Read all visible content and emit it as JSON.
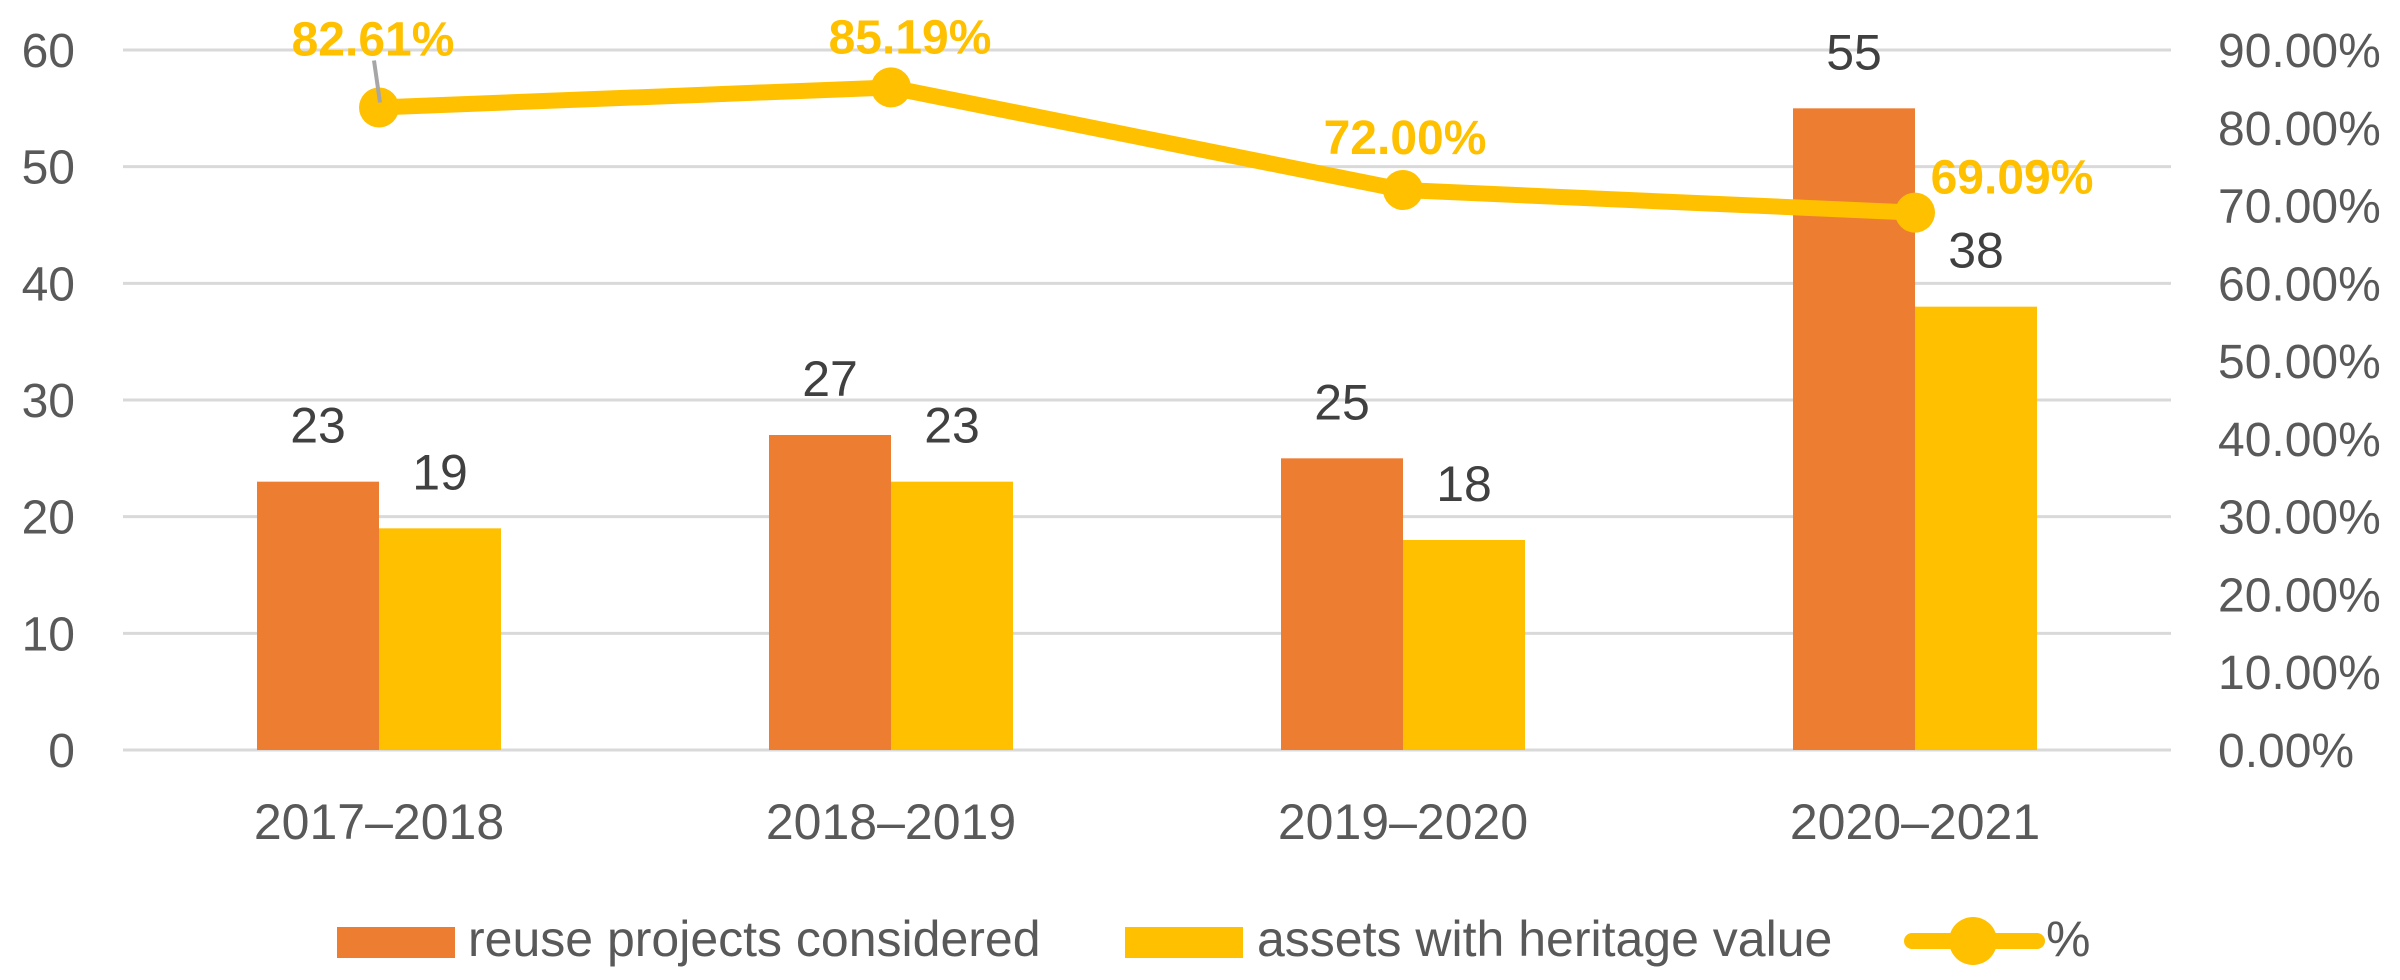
{
  "chart_data": {
    "type": "combo",
    "subtypes": [
      "bar",
      "bar",
      "line"
    ],
    "title": "",
    "categories": [
      "2017–2018",
      "2018–2019",
      "2019–2020",
      "2020–2021"
    ],
    "series": [
      {
        "name": "reuse projects considered",
        "chart": "bar",
        "axis": "left",
        "color": "#ED7D31",
        "values": [
          23,
          27,
          25,
          55
        ],
        "value_labels": [
          "23",
          "27",
          "25",
          "55"
        ]
      },
      {
        "name": "assets with heritage value",
        "chart": "bar",
        "axis": "left",
        "color": "#FFC000",
        "values": [
          19,
          23,
          18,
          38
        ],
        "value_labels": [
          "19",
          "23",
          "18",
          "38"
        ]
      },
      {
        "name": "%",
        "chart": "line",
        "axis": "right",
        "color": "#FFC000",
        "values": [
          82.61,
          85.19,
          72.0,
          69.09
        ],
        "value_labels": [
          "82.61%",
          "85.19%",
          "72.00%",
          "69.09%"
        ]
      }
    ],
    "left_axis": {
      "min": 0,
      "max": 60,
      "tick_values": [
        0,
        10,
        20,
        30,
        40,
        50,
        60
      ],
      "tick_labels": [
        "0",
        "10",
        "20",
        "30",
        "40",
        "50",
        "60"
      ]
    },
    "right_axis": {
      "min": 0,
      "max": 90,
      "tick_values": [
        0,
        10,
        20,
        30,
        40,
        50,
        60,
        70,
        80,
        90
      ],
      "tick_labels": [
        "0.00%",
        "10.00%",
        "20.00%",
        "30.00%",
        "40.00%",
        "50.00%",
        "60.00%",
        "70.00%",
        "80.00%",
        "90.00%"
      ]
    },
    "grid": true,
    "legend_position": "bottom",
    "styles": {
      "background": "#FFFFFF",
      "grid_color": "#D9D9D9",
      "axis_text_color": "#595959",
      "bar_label_color": "#404040",
      "percent_label_color": "#FFC000",
      "leader_line_color": "#A6A6A6"
    }
  }
}
